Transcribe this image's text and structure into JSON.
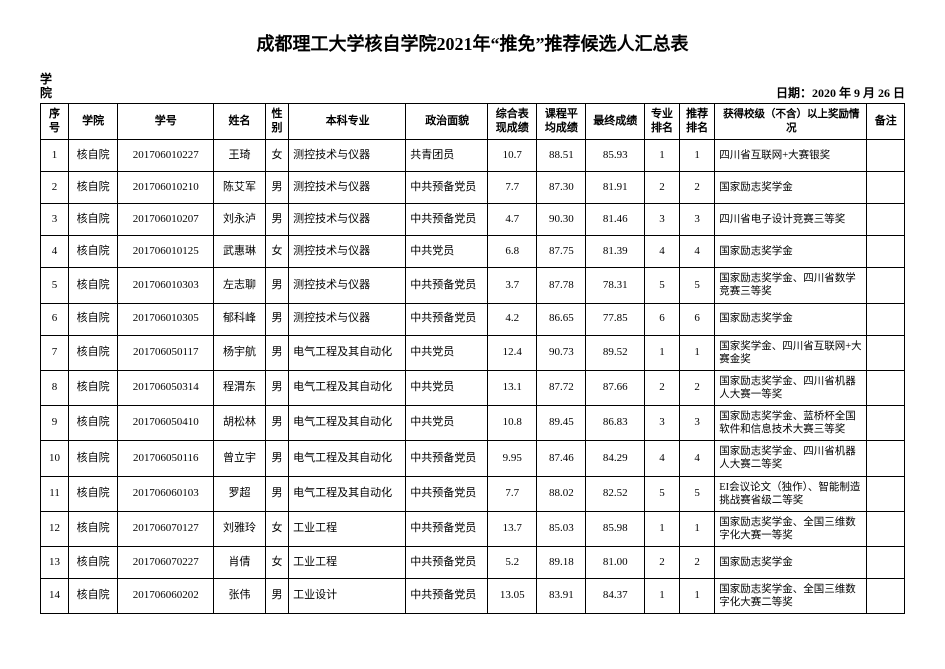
{
  "title": "成都理工大学核自学院2021年“推免”推荐候选人汇总表",
  "meta_left_1": "学",
  "meta_left_2": "院",
  "date_label": "日期：",
  "date_value": "2020 年 9 月 26 日",
  "headers": {
    "idx": "序号",
    "college": "学院",
    "sid": "学号",
    "name": "姓名",
    "sex": "性别",
    "major": "本科专业",
    "politics": "政治面貌",
    "s1": "综合表现成绩",
    "s2": "课程平均成绩",
    "s3": "最终成绩",
    "r1": "专业排名",
    "r2": "推荐排名",
    "award": "获得校级（不含）以上奖励情况",
    "note": "备注"
  },
  "rows": [
    {
      "idx": "1",
      "college": "核自院",
      "sid": "201706010227",
      "name": "王琦",
      "sex": "女",
      "major": "测控技术与仪器",
      "pol": "共青团员",
      "s1": "10.7",
      "s2": "88.51",
      "s3": "85.93",
      "r1": "1",
      "r2": "1",
      "award": "四川省互联网+大赛银奖",
      "note": ""
    },
    {
      "idx": "2",
      "college": "核自院",
      "sid": "201706010210",
      "name": "陈艾军",
      "sex": "男",
      "major": "测控技术与仪器",
      "pol": "中共预备党员",
      "s1": "7.7",
      "s2": "87.30",
      "s3": "81.91",
      "r1": "2",
      "r2": "2",
      "award": "国家励志奖学金",
      "note": ""
    },
    {
      "idx": "3",
      "college": "核自院",
      "sid": "201706010207",
      "name": "刘永泸",
      "sex": "男",
      "major": "测控技术与仪器",
      "pol": "中共预备党员",
      "s1": "4.7",
      "s2": "90.30",
      "s3": "81.46",
      "r1": "3",
      "r2": "3",
      "award": "四川省电子设计竞赛三等奖",
      "note": ""
    },
    {
      "idx": "4",
      "college": "核自院",
      "sid": "201706010125",
      "name": "武惠琳",
      "sex": "女",
      "major": "测控技术与仪器",
      "pol": "中共党员",
      "s1": "6.8",
      "s2": "87.75",
      "s3": "81.39",
      "r1": "4",
      "r2": "4",
      "award": "国家励志奖学金",
      "note": ""
    },
    {
      "idx": "5",
      "college": "核自院",
      "sid": "201706010303",
      "name": "左志聊",
      "sex": "男",
      "major": "测控技术与仪器",
      "pol": "中共预备党员",
      "s1": "3.7",
      "s2": "87.78",
      "s3": "78.31",
      "r1": "5",
      "r2": "5",
      "award": "国家励志奖学金、四川省数学竞赛三等奖",
      "note": ""
    },
    {
      "idx": "6",
      "college": "核自院",
      "sid": "201706010305",
      "name": "郁科峰",
      "sex": "男",
      "major": "测控技术与仪器",
      "pol": "中共预备党员",
      "s1": "4.2",
      "s2": "86.65",
      "s3": "77.85",
      "r1": "6",
      "r2": "6",
      "award": "国家励志奖学金",
      "note": ""
    },
    {
      "idx": "7",
      "college": "核自院",
      "sid": "201706050117",
      "name": "杨宇航",
      "sex": "男",
      "major": "电气工程及其自动化",
      "pol": "中共党员",
      "s1": "12.4",
      "s2": "90.73",
      "s3": "89.52",
      "r1": "1",
      "r2": "1",
      "award": "国家奖学金、四川省互联网+大赛金奖",
      "note": ""
    },
    {
      "idx": "8",
      "college": "核自院",
      "sid": "201706050314",
      "name": "程渭东",
      "sex": "男",
      "major": "电气工程及其自动化",
      "pol": "中共党员",
      "s1": "13.1",
      "s2": "87.72",
      "s3": "87.66",
      "r1": "2",
      "r2": "2",
      "award": "国家励志奖学金、四川省机器人大赛一等奖",
      "note": ""
    },
    {
      "idx": "9",
      "college": "核自院",
      "sid": "201706050410",
      "name": "胡松林",
      "sex": "男",
      "major": "电气工程及其自动化",
      "pol": "中共党员",
      "s1": "10.8",
      "s2": "89.45",
      "s3": "86.83",
      "r1": "3",
      "r2": "3",
      "award": "国家励志奖学金、蓝桥杯全国软件和信息技术大赛三等奖",
      "note": ""
    },
    {
      "idx": "10",
      "college": "核自院",
      "sid": "201706050116",
      "name": "曾立宇",
      "sex": "男",
      "major": "电气工程及其自动化",
      "pol": "中共预备党员",
      "s1": "9.95",
      "s2": "87.46",
      "s3": "84.29",
      "r1": "4",
      "r2": "4",
      "award": "国家励志奖学金、四川省机器人大赛二等奖",
      "note": ""
    },
    {
      "idx": "11",
      "college": "核自院",
      "sid": "201706060103",
      "name": "罗超",
      "sex": "男",
      "major": "电气工程及其自动化",
      "pol": "中共预备党员",
      "s1": "7.7",
      "s2": "88.02",
      "s3": "82.52",
      "r1": "5",
      "r2": "5",
      "award": "EI会议论文（独作）、智能制造挑战赛省级二等奖",
      "note": ""
    },
    {
      "idx": "12",
      "college": "核自院",
      "sid": "201706070127",
      "name": "刘雅玲",
      "sex": "女",
      "major": "工业工程",
      "pol": "中共预备党员",
      "s1": "13.7",
      "s2": "85.03",
      "s3": "85.98",
      "r1": "1",
      "r2": "1",
      "award": "国家励志奖学金、全国三维数字化大赛一等奖",
      "note": ""
    },
    {
      "idx": "13",
      "college": "核自院",
      "sid": "201706070227",
      "name": "肖倩",
      "sex": "女",
      "major": "工业工程",
      "pol": "中共预备党员",
      "s1": "5.2",
      "s2": "89.18",
      "s3": "81.00",
      "r1": "2",
      "r2": "2",
      "award": "国家励志奖学金",
      "note": ""
    },
    {
      "idx": "14",
      "college": "核自院",
      "sid": "201706060202",
      "name": "张伟",
      "sex": "男",
      "major": "工业设计",
      "pol": "中共预备党员",
      "s1": "13.05",
      "s2": "83.91",
      "s3": "84.37",
      "r1": "1",
      "r2": "1",
      "award": "国家励志奖学金、全国三维数字化大赛二等奖",
      "note": ""
    }
  ]
}
